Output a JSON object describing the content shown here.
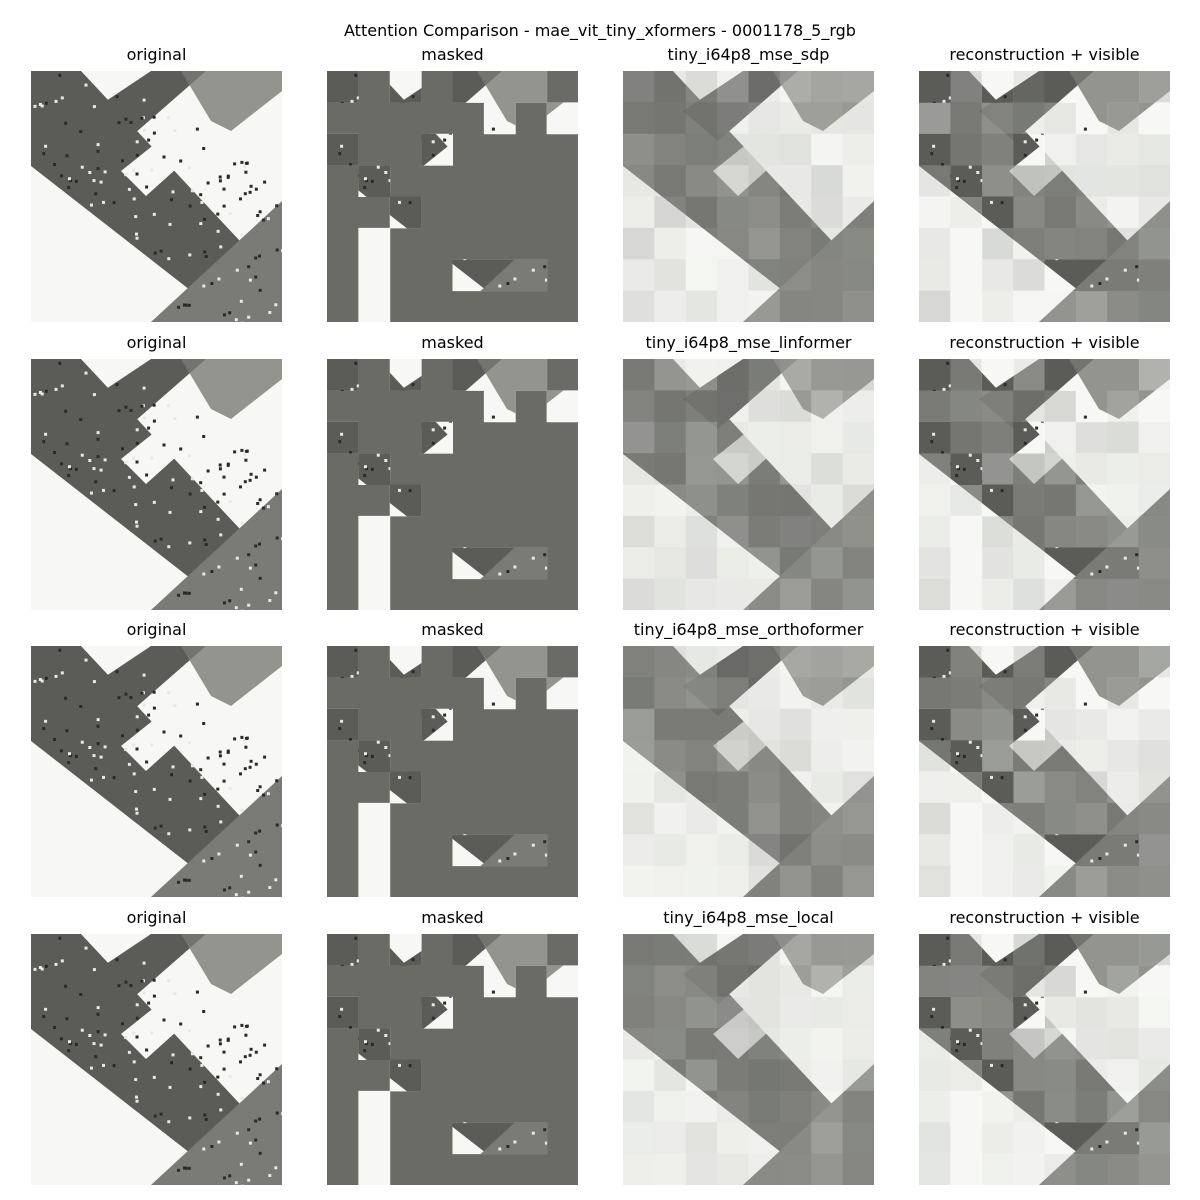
{
  "figure": {
    "title": "Attention Comparison - mae_vit_tiny_xformers - 0001178_5_rgb"
  },
  "colors": {
    "mask_gray": "#6b6b66",
    "road_dark": "#5b5b58",
    "road_mid": "#7a7a76",
    "white": "#f7f7f5"
  },
  "rows": [
    {
      "panels": [
        {
          "kind": "original",
          "title": "original"
        },
        {
          "kind": "masked",
          "title": "masked"
        },
        {
          "kind": "reconstruction",
          "title": "tiny_i64p8_mse_sdp"
        },
        {
          "kind": "composite",
          "title": "reconstruction + visible"
        }
      ]
    },
    {
      "panels": [
        {
          "kind": "original",
          "title": "original"
        },
        {
          "kind": "masked",
          "title": "masked"
        },
        {
          "kind": "reconstruction",
          "title": "tiny_i64p8_mse_linformer"
        },
        {
          "kind": "composite",
          "title": "reconstruction + visible"
        }
      ]
    },
    {
      "panels": [
        {
          "kind": "original",
          "title": "original"
        },
        {
          "kind": "masked",
          "title": "masked"
        },
        {
          "kind": "reconstruction",
          "title": "tiny_i64p8_mse_orthoformer"
        },
        {
          "kind": "composite",
          "title": "reconstruction + visible"
        }
      ]
    },
    {
      "panels": [
        {
          "kind": "original",
          "title": "original"
        },
        {
          "kind": "masked",
          "title": "masked"
        },
        {
          "kind": "reconstruction",
          "title": "tiny_i64p8_mse_local"
        },
        {
          "kind": "composite",
          "title": "reconstruction + visible"
        }
      ]
    }
  ]
}
